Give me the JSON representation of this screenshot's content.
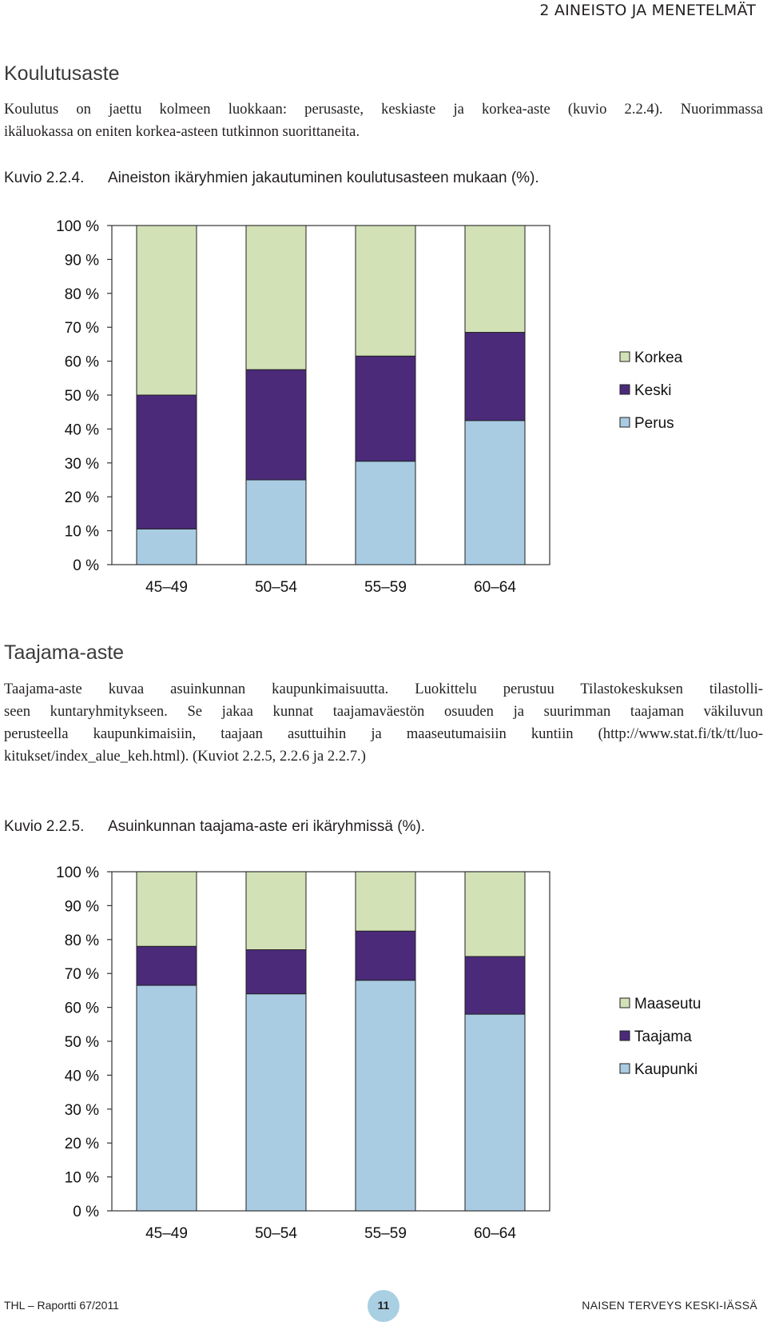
{
  "header": {
    "running_title": "2  AINEISTO JA MENETELMÄT"
  },
  "section1": {
    "heading": "Koulutusaste",
    "paragraph_lines": [
      "Koulutus on jaettu kolmeen luokkaan: perusaste, keskiaste ja korkea-aste (kuvio 2.2.4). Nuorimmassa",
      "ikäluokassa on eniten korkea-asteen tutkinnon suorittaneita."
    ],
    "figure_number": "Kuvio 2.2.4.",
    "figure_caption": "Aineiston ikäryhmien jakautuminen koulutusasteen mukaan (%)."
  },
  "section2": {
    "heading": "Taajama-aste",
    "paragraph_lines": [
      "Taajama-aste kuvaa asuinkunnan kaupunkimaisuutta. Luokittelu perustuu Tilastokeskuksen tilastolli-",
      "seen kuntaryhmitykseen. Se jakaa kunnat taajamaväestön osuuden ja suurimman taajaman väkiluvun",
      "perusteella kaupunkimaisiin, taajaan asuttuihin ja maaseutumaisiin kuntiin (http://www.stat.fi/tk/tt/luo-",
      "kitukset/index_alue_keh.html). (Kuviot 2.2.5, 2.2.6 ja 2.2.7.)"
    ],
    "figure_number": "Kuvio 2.2.5.",
    "figure_caption": "Asuinkunnan taajama-aste eri ikäryhmissä (%)."
  },
  "footer": {
    "left": "THL – Raportti 67/2011",
    "page_number": "11",
    "right": "NAISEN TERVEYS KESKI-IÄSSÄ"
  },
  "chart_data": [
    {
      "type": "bar",
      "stacked": true,
      "percent_stacked": true,
      "categories": [
        "45–49",
        "50–54",
        "55–59",
        "60–64"
      ],
      "y_ticks": [
        "0 %",
        "10 %",
        "20 %",
        "30 %",
        "40 %",
        "50 %",
        "60 %",
        "70 %",
        "80 %",
        "90 %",
        "100 %"
      ],
      "ylim": [
        0,
        100
      ],
      "legend_position": "right",
      "series": [
        {
          "name": "Perus",
          "color": "#a9cce3",
          "values": [
            10.5,
            25,
            30.5,
            42.5
          ]
        },
        {
          "name": "Keski",
          "color": "#4b2a7a",
          "values": [
            39.5,
            32.5,
            31,
            26
          ]
        },
        {
          "name": "Korkea",
          "color": "#d3e1b7",
          "values": [
            50,
            42.5,
            38.5,
            31.5
          ]
        }
      ],
      "legend_order": [
        "Korkea",
        "Keski",
        "Perus"
      ]
    },
    {
      "type": "bar",
      "stacked": true,
      "percent_stacked": true,
      "categories": [
        "45–49",
        "50–54",
        "55–59",
        "60–64"
      ],
      "y_ticks": [
        "0 %",
        "10 %",
        "20 %",
        "30 %",
        "40 %",
        "50 %",
        "60 %",
        "70 %",
        "80 %",
        "90 %",
        "100 %"
      ],
      "ylim": [
        0,
        100
      ],
      "legend_position": "right",
      "series": [
        {
          "name": "Kaupunki",
          "color": "#a9cce3",
          "values": [
            66.5,
            64,
            68,
            58
          ]
        },
        {
          "name": "Taajama",
          "color": "#4b2a7a",
          "values": [
            11.5,
            13,
            14.5,
            17
          ]
        },
        {
          "name": "Maaseutu",
          "color": "#d3e1b7",
          "values": [
            22,
            23,
            17.5,
            25
          ]
        }
      ],
      "legend_order": [
        "Maaseutu",
        "Taajama",
        "Kaupunki"
      ]
    }
  ]
}
